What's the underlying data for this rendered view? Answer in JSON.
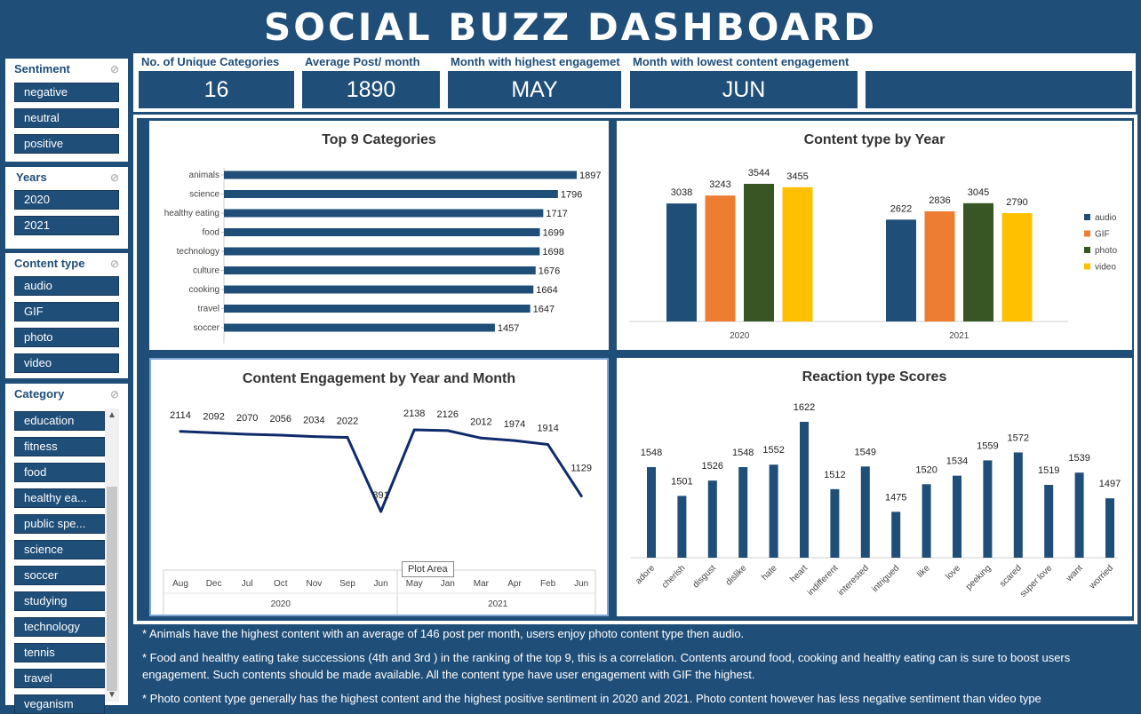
{
  "title": "SOCIAL BUZZ DASHBOARD",
  "slicers": {
    "sentiment": {
      "title": "Sentiment",
      "items": [
        "negative",
        "neutral",
        "positive"
      ]
    },
    "years": {
      "title": "Years",
      "items": [
        "2020",
        "2021"
      ]
    },
    "content_type": {
      "title": "Content type",
      "items": [
        "audio",
        "GIF",
        "photo",
        "video"
      ]
    },
    "category": {
      "title": "Category",
      "items": [
        "education",
        "fitness",
        "food",
        "healthy ea...",
        "public spe...",
        "science",
        "soccer",
        "studying",
        "technology",
        "tennis",
        "travel",
        "veganism"
      ]
    }
  },
  "kpis": [
    {
      "label": "No. of Unique Categories",
      "value": "16"
    },
    {
      "label": "Average Post/ month",
      "value": "1890"
    },
    {
      "label": "Month with highest engagemet",
      "value": "MAY"
    },
    {
      "label": "Month with lowest content engagement",
      "value": "JUN"
    }
  ],
  "panels": {
    "top9": "Top 9 Categories",
    "content_type_year": "Content type by Year",
    "engagement": "Content Engagement by Year and Month",
    "reaction": "Reaction type Scores"
  },
  "tooltip": "Plot Area",
  "notes": [
    "* Animals have the highest content with an average of 146 post per month, users enjoy photo content type then audio.",
    "* Food and healthy eating take successions  (4th and 3rd ) in the ranking of the top 9, this is a correlation. Contents around food, cooking and healthy eating can is sure to boost users engagement. Such contents should be made available. All the content type have user engagement with GIF the highest.",
    "* Photo content type generally has the highest content and the highest positive sentiment in 2020 and 2021. Photo content however has less negative sentiment than video type"
  ],
  "colors": {
    "navy": "#1f4e79",
    "audio": "#1f4e79",
    "gif": "#ed7d31",
    "photo": "#375623",
    "video": "#ffc000",
    "line": "#0f2b6b"
  },
  "chart_data": [
    {
      "type": "bar",
      "orientation": "horizontal",
      "title": "Top 9 Categories",
      "categories": [
        "animals",
        "science",
        "healthy eating",
        "food",
        "technology",
        "culture",
        "cooking",
        "travel",
        "soccer"
      ],
      "values": [
        1897,
        1796,
        1717,
        1699,
        1698,
        1676,
        1664,
        1647,
        1457
      ]
    },
    {
      "type": "bar",
      "title": "Content type by Year",
      "categories": [
        "2020",
        "2021"
      ],
      "series": [
        {
          "name": "audio",
          "values": [
            3038,
            2622
          ]
        },
        {
          "name": "GIF",
          "values": [
            3243,
            2836
          ]
        },
        {
          "name": "photo",
          "values": [
            3544,
            3045
          ]
        },
        {
          "name": "video",
          "values": [
            3455,
            2790
          ]
        }
      ],
      "legend": "right"
    },
    {
      "type": "line",
      "title": "Content Engagement by Year and Month",
      "x": [
        "Aug",
        "Dec",
        "Jul",
        "Oct",
        "Nov",
        "Sep",
        "Jun",
        "May",
        "Jan",
        "Mar",
        "Apr",
        "Feb",
        "Jun"
      ],
      "year_groups": [
        {
          "label": "2020",
          "count": 7
        },
        {
          "label": "2021",
          "count": 6
        }
      ],
      "values": [
        2114,
        2092,
        2070,
        2056,
        2034,
        2022,
        891,
        2138,
        2126,
        2012,
        1974,
        1914,
        1129
      ]
    },
    {
      "type": "bar",
      "title": "Reaction type Scores",
      "categories": [
        "adore",
        "cherish",
        "disgust",
        "dislike",
        "hate",
        "heart",
        "indifferent",
        "interested",
        "intrigued",
        "like",
        "love",
        "peeking",
        "scared",
        "super love",
        "want",
        "worried"
      ],
      "values": [
        1548,
        1501,
        1526,
        1548,
        1552,
        1622,
        1512,
        1549,
        1475,
        1520,
        1534,
        1559,
        1572,
        1519,
        1539,
        1497
      ]
    }
  ]
}
